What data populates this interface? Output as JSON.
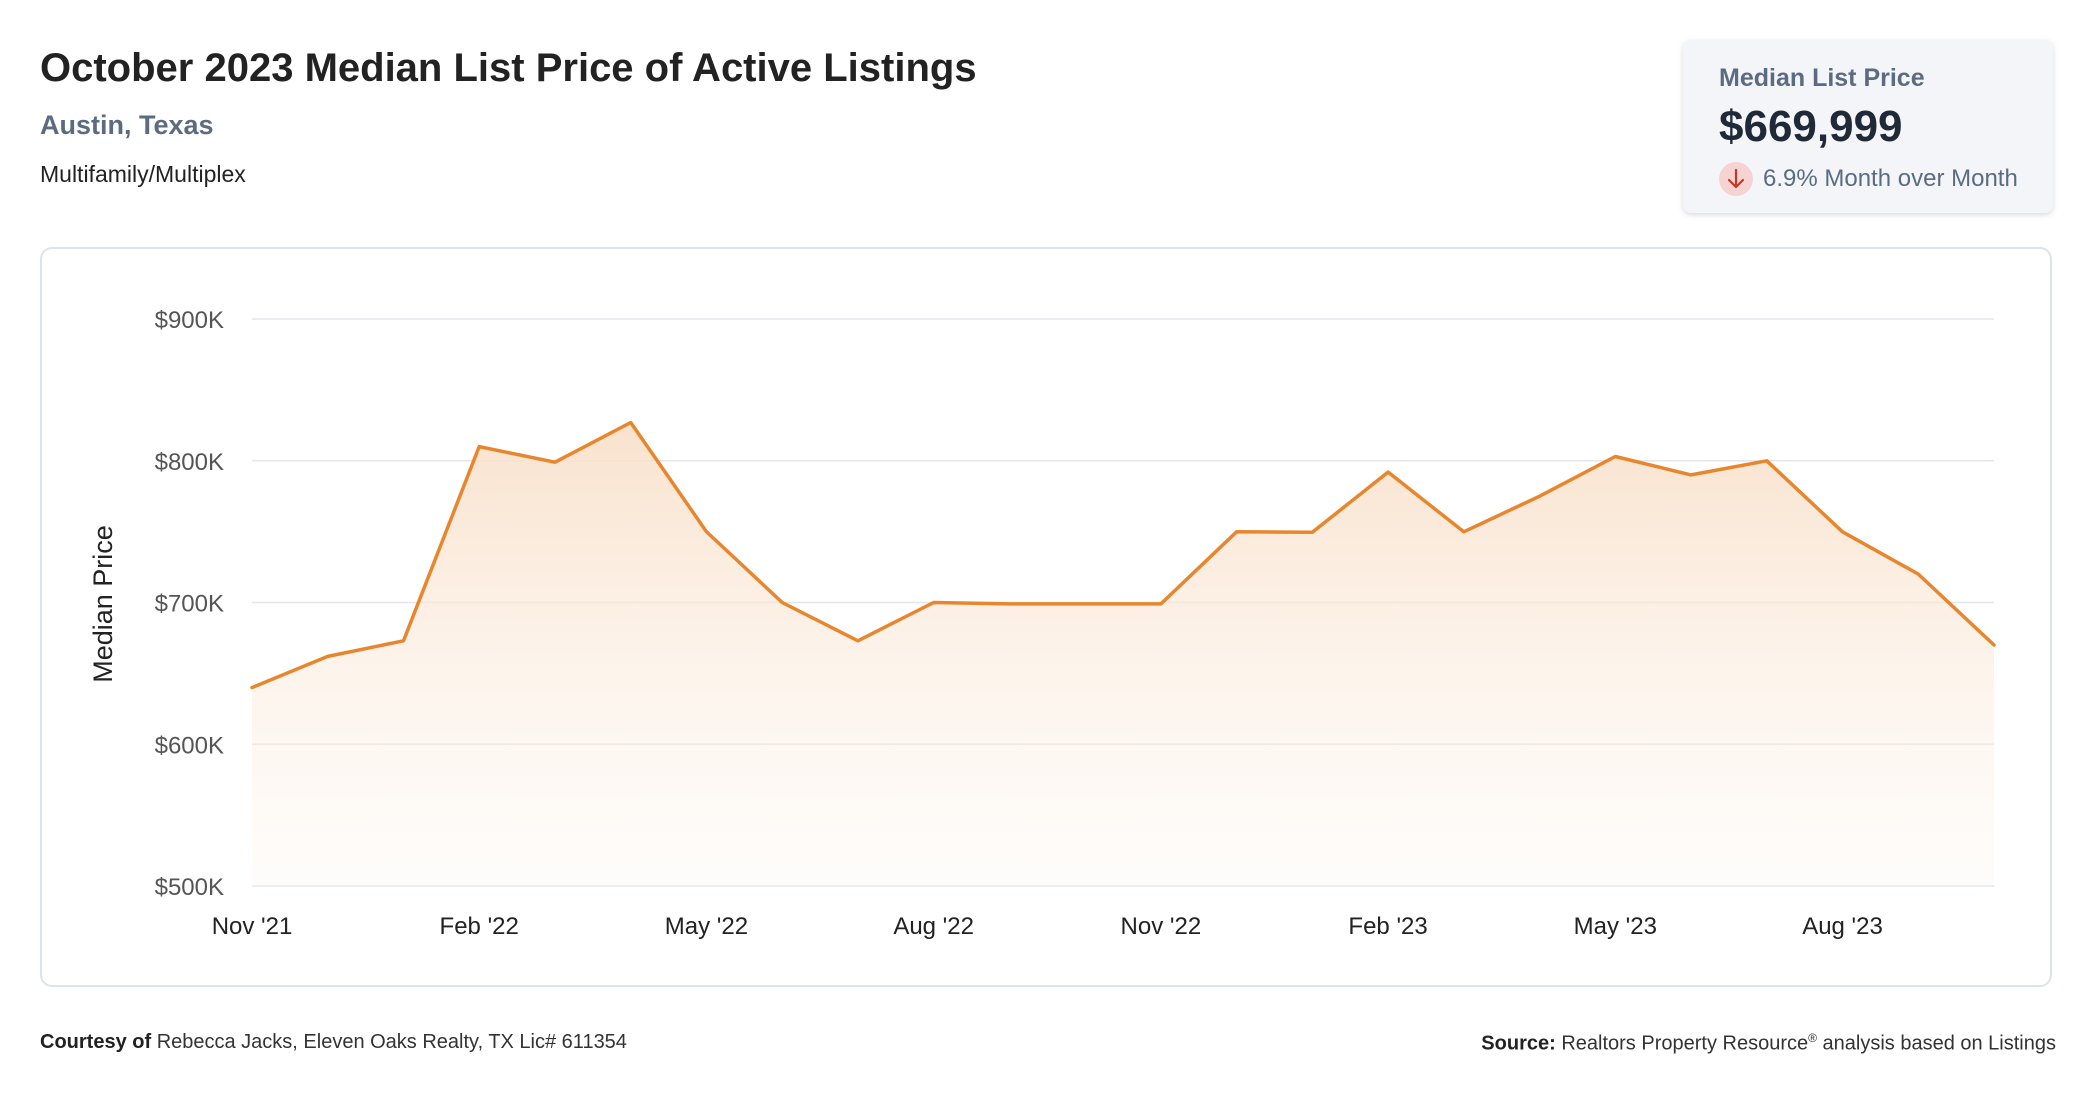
{
  "header": {
    "title": "October 2023 Median List Price of Active Listings",
    "location": "Austin, Texas",
    "property_type": "Multifamily/Multiplex"
  },
  "stat_card": {
    "label": "Median List Price",
    "value": "$669,999",
    "change": "6.9% Month over Month",
    "direction": "down",
    "direction_icon": "arrow-down-icon",
    "badge_color": "#f6d3d0",
    "arrow_color": "#c0392b"
  },
  "colors": {
    "line": "#e8862e",
    "area_top": "#f8dfc8",
    "grid": "#e3e6ea",
    "tick_text": "#555555"
  },
  "chart_data": {
    "type": "area",
    "ylabel": "Median Price",
    "xlabel": "",
    "ylim": [
      500000,
      900000
    ],
    "yticks": [
      500000,
      600000,
      700000,
      800000,
      900000
    ],
    "ytick_labels": [
      "$500K",
      "$600K",
      "$700K",
      "$800K",
      "$900K"
    ],
    "xtick_labels": [
      "Nov '21",
      "Feb '22",
      "May '22",
      "Aug '22",
      "Nov '22",
      "Feb '23",
      "May '23",
      "Aug '23"
    ],
    "grid": true,
    "legend": "none",
    "x": [
      "2021-11",
      "2021-12",
      "2022-01",
      "2022-02",
      "2022-03",
      "2022-04",
      "2022-05",
      "2022-06",
      "2022-07",
      "2022-08",
      "2022-09",
      "2022-10",
      "2022-11",
      "2022-12",
      "2023-01",
      "2023-02",
      "2023-03",
      "2023-04",
      "2023-05",
      "2023-06",
      "2023-07",
      "2023-08",
      "2023-09",
      "2023-10"
    ],
    "series": [
      {
        "values": [
          640000,
          662000,
          673000,
          810000,
          799000,
          827000,
          750000,
          700000,
          673000,
          700000,
          699000,
          699000,
          699000,
          749900,
          749500,
          792000,
          749900,
          775000,
          803000,
          790000,
          800000,
          749900,
          720000,
          669999
        ]
      }
    ]
  },
  "footer": {
    "courtesy_label": "Courtesy of",
    "courtesy_text": "Rebecca Jacks, Eleven Oaks Realty, TX Lic# 611354",
    "source_label": "Source:",
    "source_text": "Realtors Property Resource",
    "source_sup": "®",
    "source_suffix": "analysis based on Listings"
  }
}
